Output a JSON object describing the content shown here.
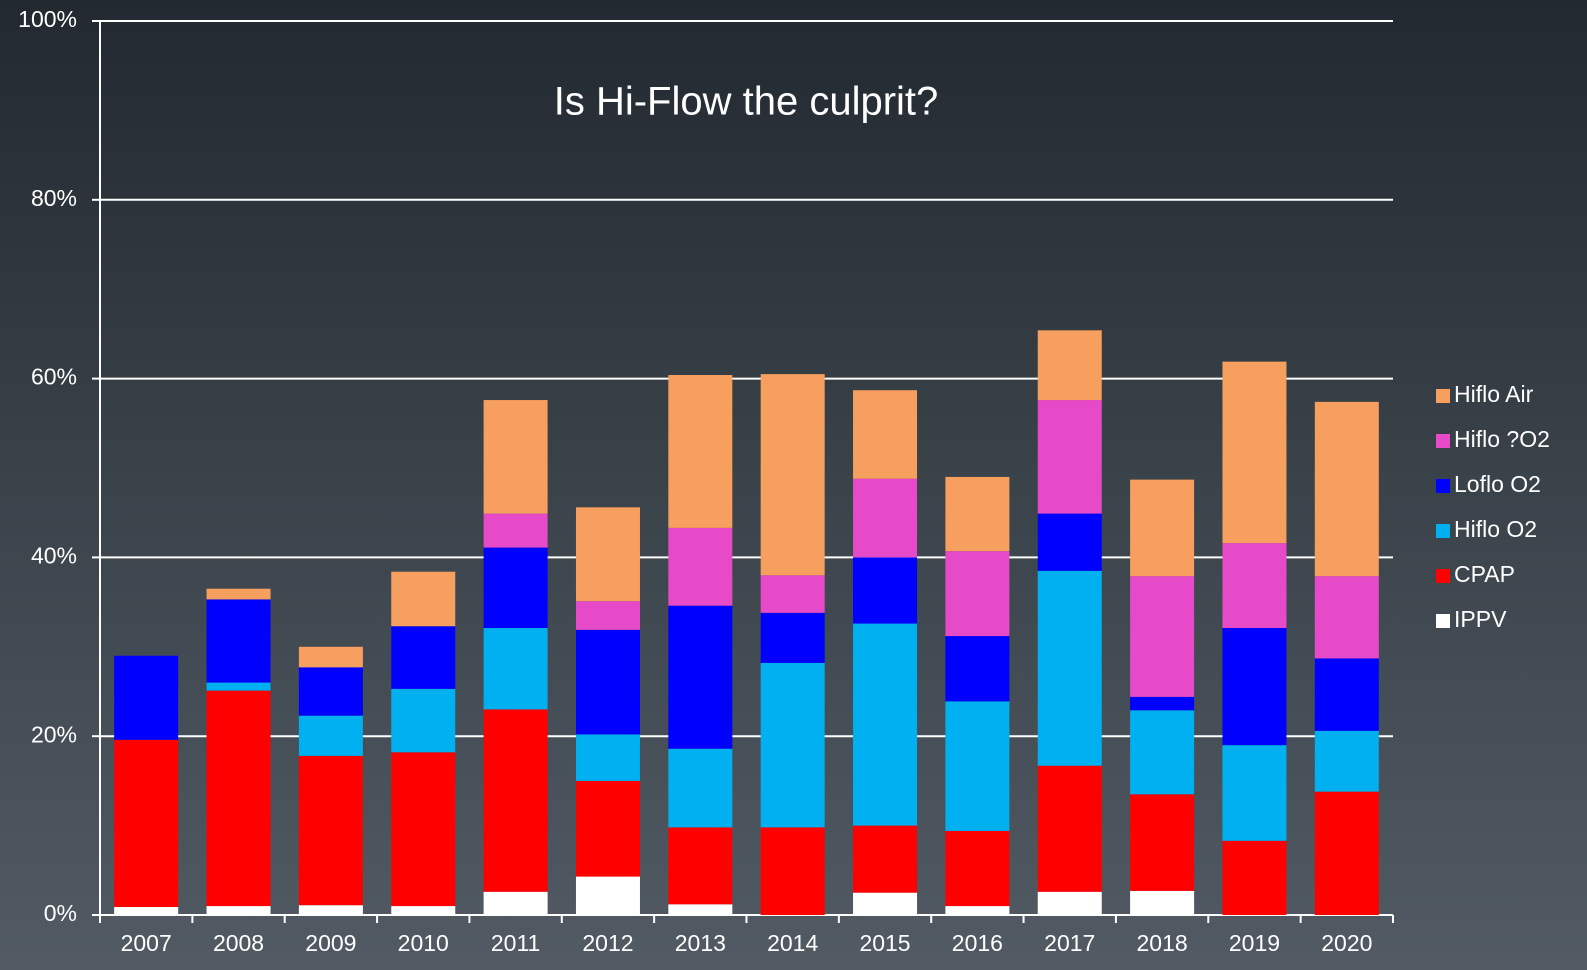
{
  "chart_data": {
    "type": "stacked_bar",
    "title": "Is Hi-Flow the culprit?",
    "categories": [
      "2007",
      "2008",
      "2009",
      "2010",
      "2011",
      "2012",
      "2013",
      "2014",
      "2015",
      "2016",
      "2017",
      "2018",
      "2019",
      "2020"
    ],
    "series": [
      {
        "name": "IPPV",
        "color": "#ffffff",
        "values": [
          0.9,
          1.0,
          1.1,
          1.0,
          2.6,
          4.3,
          1.2,
          0,
          2.5,
          1.0,
          2.6,
          2.7,
          0,
          0
        ]
      },
      {
        "name": "CPAP",
        "color": "#ff0000",
        "values": [
          18.7,
          24.1,
          16.7,
          17.2,
          20.4,
          10.7,
          8.6,
          9.8,
          7.5,
          8.4,
          14.1,
          10.8,
          8.3,
          13.8
        ]
      },
      {
        "name": "Hiflo O2",
        "color": "#00b0f0",
        "values": [
          0,
          0.9,
          4.5,
          7.1,
          9.1,
          5.2,
          8.8,
          18.4,
          22.6,
          14.5,
          21.8,
          9.4,
          10.7,
          6.8
        ]
      },
      {
        "name": "Loflo O2",
        "color": "#0000ff",
        "values": [
          9.4,
          9.3,
          5.4,
          7.0,
          9.0,
          11.7,
          16.0,
          5.6,
          7.4,
          7.3,
          6.4,
          1.5,
          13.1,
          8.1
        ]
      },
      {
        "name": "Hiflo ?O2",
        "color": "#e64ac8",
        "values": [
          0,
          0,
          0,
          0,
          3.8,
          3.2,
          8.7,
          4.2,
          8.8,
          9.5,
          12.7,
          13.5,
          9.5,
          9.2
        ]
      },
      {
        "name": "Hiflo Air",
        "color": "#f79f5e",
        "values": [
          0,
          1.2,
          2.3,
          6.1,
          12.7,
          10.5,
          17.1,
          22.5,
          9.9,
          8.3,
          7.8,
          10.8,
          20.3,
          19.5
        ]
      }
    ],
    "ylim": [
      0,
      100
    ],
    "yticks": [
      {
        "value": 0,
        "label": "0%"
      },
      {
        "value": 20,
        "label": "20%"
      },
      {
        "value": 40,
        "label": "40%"
      },
      {
        "value": 60,
        "label": "60%"
      },
      {
        "value": 80,
        "label": "80%"
      },
      {
        "value": 100,
        "label": "100%"
      }
    ],
    "grid": true,
    "legend": "right"
  }
}
